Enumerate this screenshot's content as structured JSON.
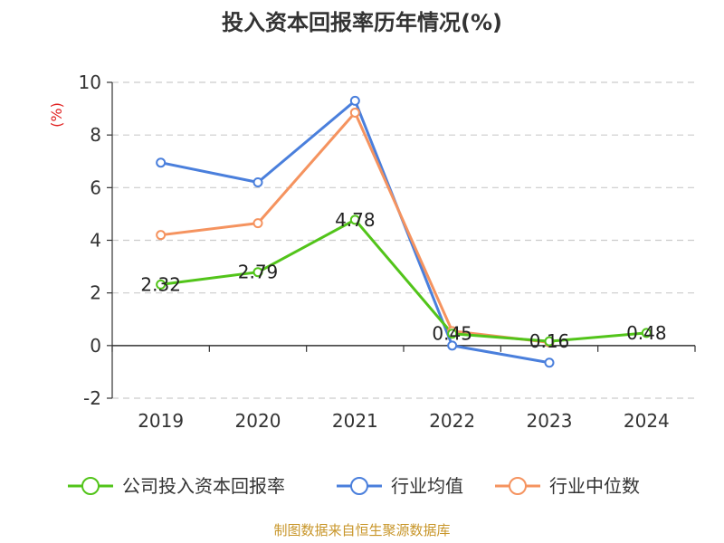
{
  "chart_data": {
    "type": "line",
    "title": "投入资本回报率历年情况(%)",
    "ylabel": "(%)",
    "categories": [
      "2019",
      "2020",
      "2021",
      "2022",
      "2023",
      "2024"
    ],
    "ylim": [
      -2,
      10
    ],
    "yticks": [
      -2,
      0,
      2,
      4,
      6,
      8,
      10
    ],
    "grid": true,
    "legend_position": "bottom",
    "series": [
      {
        "name": "公司投入资本回报率",
        "color": "#52c41a",
        "values": [
          2.32,
          2.79,
          4.78,
          0.45,
          0.16,
          0.48
        ],
        "labels": [
          "2.32",
          "2.79",
          "4.78",
          "0.45",
          "0.16",
          "0.48"
        ]
      },
      {
        "name": "行业均值",
        "color": "#4a7fdc",
        "values": [
          6.95,
          6.2,
          9.3,
          0.0,
          -0.65,
          null
        ]
      },
      {
        "name": "行业中位数",
        "color": "#f5935f",
        "values": [
          4.2,
          4.65,
          8.85,
          0.55,
          0.12,
          null
        ]
      }
    ]
  },
  "source": "制图数据来自恒生聚源数据库"
}
